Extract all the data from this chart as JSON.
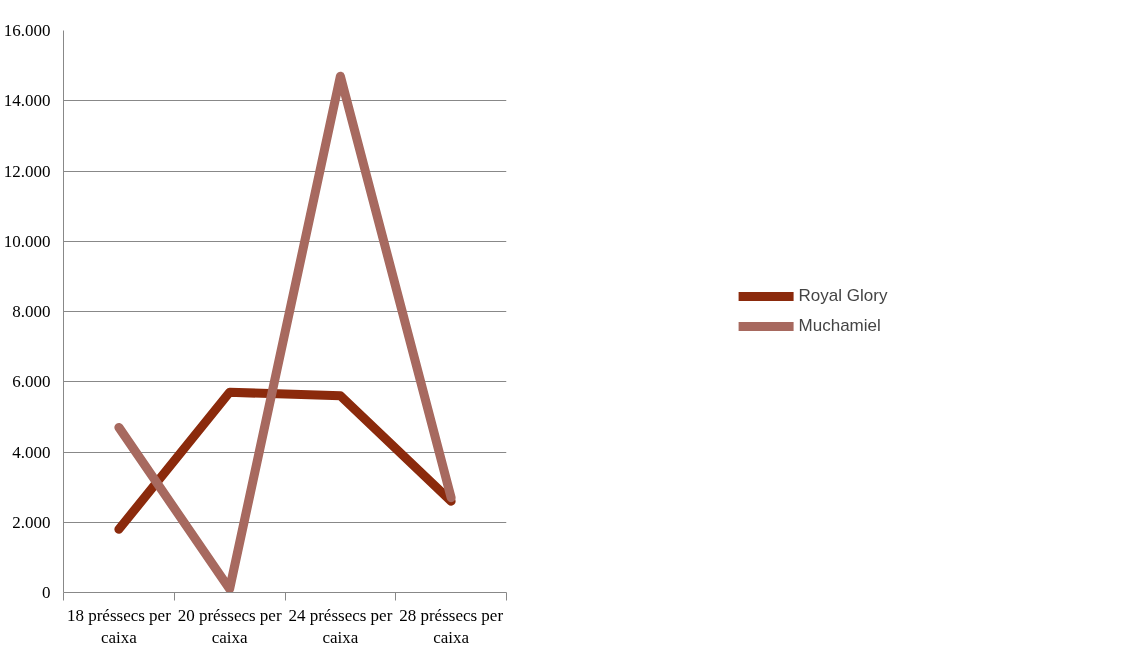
{
  "chart_data": {
    "type": "line",
    "categories": [
      "18 préssecs per caixa",
      "20 préssecs per caixa",
      "24 préssecs per caixa",
      "28 préssecs per caixa"
    ],
    "series": [
      {
        "name": "Royal Glory",
        "color": "#8b2a0c",
        "values": [
          1800,
          5700,
          5600,
          2600
        ]
      },
      {
        "name": "Muchamiel",
        "color": "#a7695f",
        "values": [
          4700,
          100,
          14700,
          2700
        ]
      }
    ],
    "ylim": [
      0,
      16000
    ],
    "yticks": [
      {
        "value": 0,
        "label": "0"
      },
      {
        "value": 2000,
        "label": "2.000"
      },
      {
        "value": 4000,
        "label": "4.000"
      },
      {
        "value": 6000,
        "label": "6.000"
      },
      {
        "value": 8000,
        "label": "8.000"
      },
      {
        "value": 10000,
        "label": "10.000"
      },
      {
        "value": 12000,
        "label": "12.000"
      },
      {
        "value": 14000,
        "label": "14.000"
      },
      {
        "value": 16000,
        "label": "16.000"
      }
    ],
    "grid": "y",
    "legend": "right",
    "marker": "none",
    "line_style": "solid"
  }
}
